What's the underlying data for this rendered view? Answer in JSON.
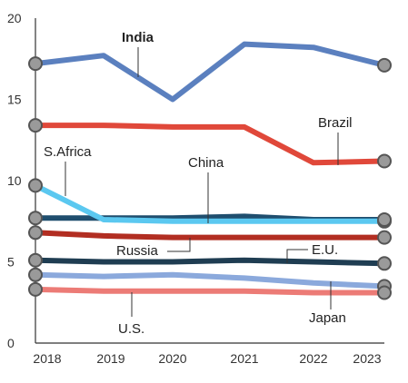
{
  "chart_data": {
    "type": "line",
    "x": [
      "2018",
      "2019",
      "2020",
      "2021",
      "2022",
      "2023"
    ],
    "ylim": [
      0,
      20
    ],
    "yticks": [
      "0",
      "5",
      "10",
      "15",
      "20"
    ],
    "grid": false,
    "colors": {
      "axis": "#333333",
      "marker_fill": "#9a9a9a",
      "marker_stroke": "#555555",
      "leader": "#333333"
    },
    "series": [
      {
        "name": "India",
        "color": "#5b80bf",
        "bold": true,
        "values": [
          17.2,
          17.7,
          15.0,
          18.4,
          18.2,
          17.1
        ]
      },
      {
        "name": "Brazil",
        "color": "#e0483a",
        "values": [
          13.4,
          13.4,
          13.3,
          13.3,
          11.1,
          11.2
        ]
      },
      {
        "name": "S.Africa",
        "color": "#5bc8f0",
        "values": [
          9.7,
          7.6,
          7.5,
          7.5,
          7.5,
          7.5
        ]
      },
      {
        "name": "China",
        "color": "#1f4e6e",
        "values": [
          7.7,
          7.7,
          7.7,
          7.8,
          7.6,
          7.6
        ]
      },
      {
        "name": "Russia",
        "color": "#b22e22",
        "values": [
          6.8,
          6.6,
          6.5,
          6.5,
          6.5,
          6.5
        ]
      },
      {
        "name": "E.U.",
        "color": "#1f3d52",
        "values": [
          5.1,
          5.0,
          5.0,
          5.1,
          5.0,
          4.9
        ]
      },
      {
        "name": "Japan",
        "color": "#8ba9dc",
        "values": [
          4.2,
          4.1,
          4.2,
          4.0,
          3.7,
          3.5
        ]
      },
      {
        "name": "U.S.",
        "color": "#ec7b76",
        "values": [
          3.3,
          3.2,
          3.2,
          3.2,
          3.1,
          3.1
        ]
      }
    ]
  }
}
